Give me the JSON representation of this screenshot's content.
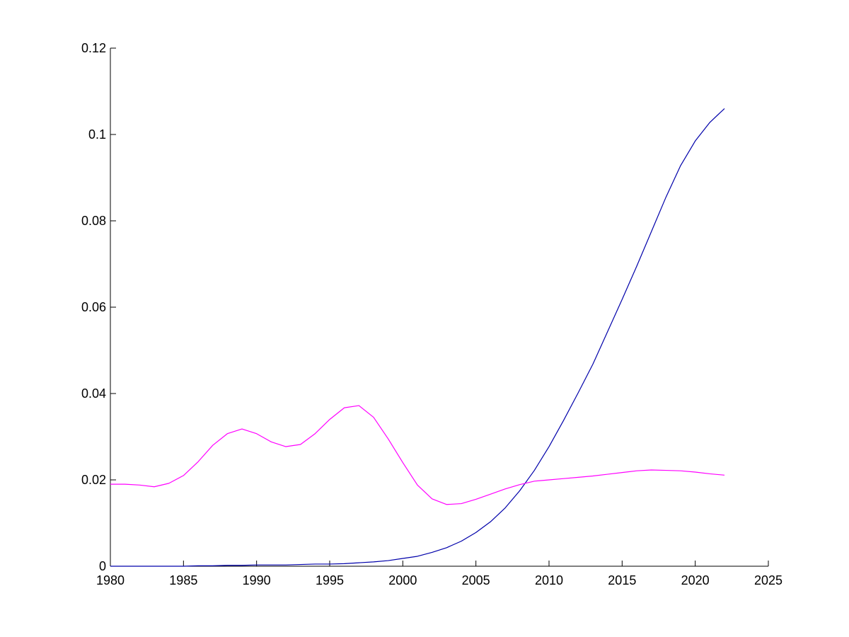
{
  "chart_data": {
    "type": "line",
    "title": "",
    "xlabel": "",
    "ylabel": "",
    "xlim": [
      1980,
      2025
    ],
    "ylim": [
      0,
      0.12
    ],
    "x_ticks": [
      "1980",
      "1985",
      "1990",
      "1995",
      "2000",
      "2005",
      "2010",
      "2015",
      "2020",
      "2025"
    ],
    "y_ticks": [
      "0",
      "0.02",
      "0.04",
      "0.06",
      "0.08",
      "0.1",
      "0.12"
    ],
    "grid": false,
    "legend": "none",
    "series": [
      {
        "color": "#0000aa",
        "x": [
          1980,
          1981,
          1982,
          1983,
          1984,
          1985,
          1986,
          1987,
          1988,
          1989,
          1990,
          1991,
          1992,
          1993,
          1994,
          1995,
          1996,
          1997,
          1998,
          1999,
          2000,
          2001,
          2002,
          2003,
          2004,
          2005,
          2006,
          2007,
          2008,
          2009,
          2010,
          2011,
          2012,
          2013,
          2014,
          2015,
          2016,
          2017,
          2018,
          2019,
          2020,
          2021,
          2022
        ],
        "y": [
          0,
          0,
          0,
          0,
          0,
          0,
          0.0001,
          0.0001,
          0.0002,
          0.0002,
          0.0003,
          0.0003,
          0.0003,
          0.0004,
          0.0005,
          0.0005,
          0.0006,
          0.0008,
          0.001,
          0.0013,
          0.0018,
          0.0023,
          0.0032,
          0.0043,
          0.0058,
          0.0078,
          0.0103,
          0.0135,
          0.0175,
          0.0222,
          0.0277,
          0.0338,
          0.0402,
          0.0468,
          0.0543,
          0.0618,
          0.0695,
          0.0775,
          0.0855,
          0.0928,
          0.0985,
          0.1028,
          0.106
        ]
      },
      {
        "color": "#ff00ff",
        "x": [
          1980,
          1981,
          1982,
          1983,
          1984,
          1985,
          1986,
          1987,
          1988,
          1989,
          1990,
          1991,
          1992,
          1993,
          1994,
          1995,
          1996,
          1997,
          1998,
          1999,
          2000,
          2001,
          2002,
          2003,
          2004,
          2005,
          2006,
          2007,
          2008,
          2009,
          2010,
          2011,
          2012,
          2013,
          2014,
          2015,
          2016,
          2017,
          2018,
          2019,
          2020,
          2021,
          2022
        ],
        "y": [
          0.019,
          0.019,
          0.0188,
          0.0184,
          0.0192,
          0.021,
          0.0242,
          0.028,
          0.0307,
          0.0318,
          0.0307,
          0.0288,
          0.0277,
          0.0282,
          0.0307,
          0.034,
          0.0367,
          0.0372,
          0.0345,
          0.0295,
          0.024,
          0.0188,
          0.0156,
          0.0143,
          0.0145,
          0.0155,
          0.0167,
          0.0179,
          0.0189,
          0.0197,
          0.02,
          0.0203,
          0.0206,
          0.0209,
          0.0213,
          0.0217,
          0.0221,
          0.0223,
          0.0222,
          0.0221,
          0.0218,
          0.0214,
          0.0211
        ]
      }
    ]
  }
}
